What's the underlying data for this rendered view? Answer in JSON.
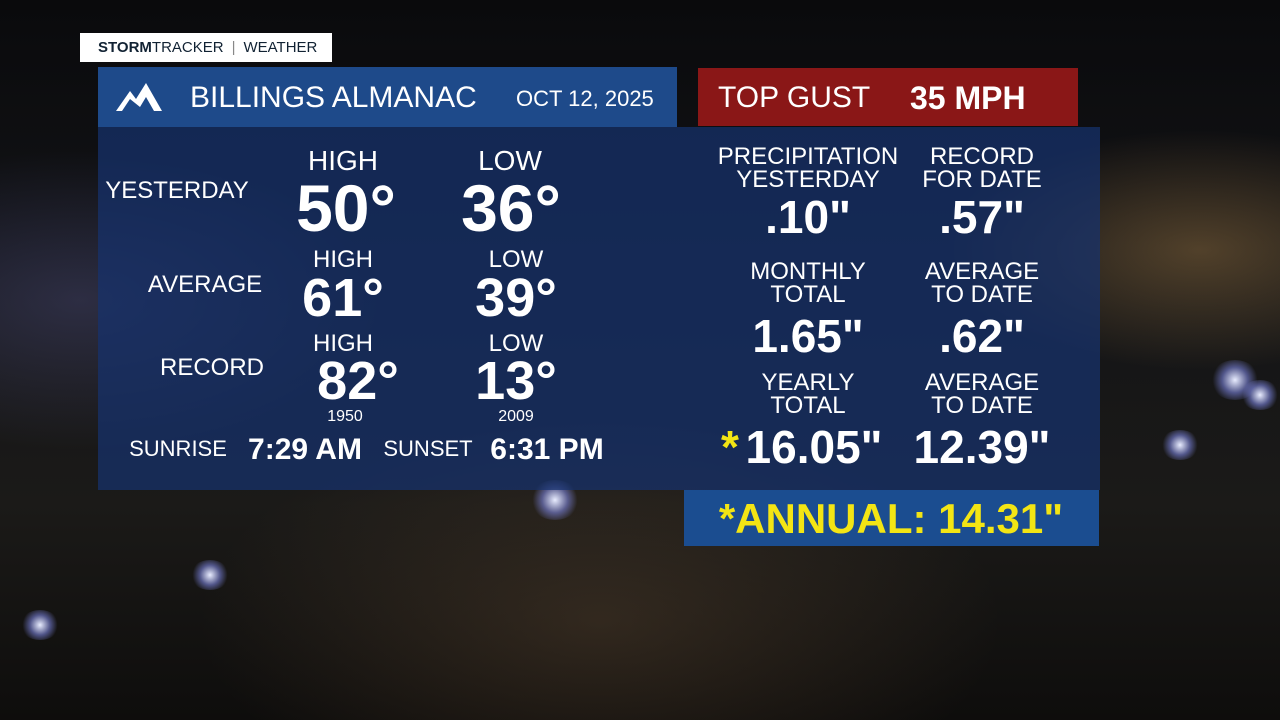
{
  "brand": {
    "strong": "STORM",
    "light": "TRACKER",
    "section": "WEATHER"
  },
  "header": {
    "title": "BILLINGS ALMANAC",
    "date": "OCT 12, 2025"
  },
  "gust": {
    "label": "TOP GUST",
    "value": "35 MPH"
  },
  "temperatures": {
    "yesterday": {
      "label": "YESTERDAY",
      "high_label": "HIGH",
      "high": "50°",
      "low_label": "LOW",
      "low": "36°"
    },
    "average": {
      "label": "AVERAGE",
      "high_label": "HIGH",
      "high": "61°",
      "low_label": "LOW",
      "low": "39°"
    },
    "record": {
      "label": "RECORD",
      "high_label": "HIGH",
      "high": "82°",
      "high_year": "1950",
      "low_label": "LOW",
      "low": "13°",
      "low_year": "2009"
    }
  },
  "sun": {
    "sunrise_label": "SUNRISE",
    "sunrise": "7:29 AM",
    "sunset_label": "SUNSET",
    "sunset": "6:31 PM"
  },
  "precipitation": [
    {
      "label": [
        "PRECIPITATION",
        "YESTERDAY"
      ],
      "value": ".10\""
    },
    {
      "label": [
        "RECORD",
        "FOR DATE"
      ],
      "value": ".57\""
    },
    {
      "label": [
        "MONTHLY",
        "TOTAL"
      ],
      "value": "1.65\""
    },
    {
      "label": [
        "AVERAGE",
        "TO DATE"
      ],
      "value": ".62\""
    },
    {
      "label": [
        "YEARLY",
        "TOTAL"
      ],
      "marker": "*",
      "value": "16.05\""
    },
    {
      "label": [
        "AVERAGE",
        "TO DATE"
      ],
      "value": "12.39\""
    }
  ],
  "annual": "*ANNUAL: 14.31\""
}
